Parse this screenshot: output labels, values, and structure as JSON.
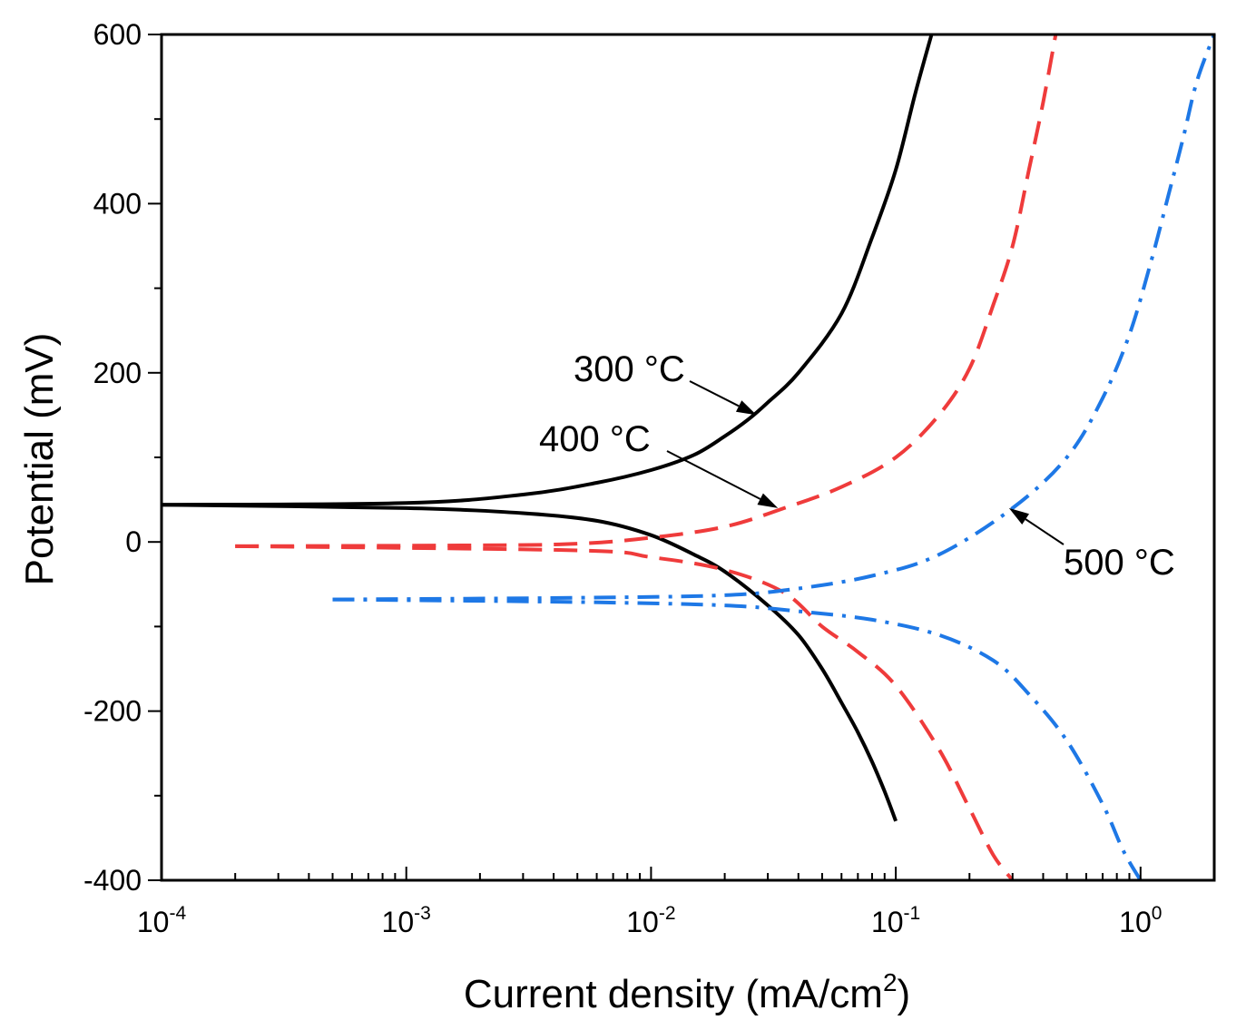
{
  "chart_data": {
    "type": "line",
    "title": "",
    "xlabel": "Current density (mA/cm",
    "xlabel_sup": "2",
    "xlabel_close": ")",
    "ylabel": "Potential (mV)",
    "xscale": "log",
    "xlim": [
      0.0001,
      2
    ],
    "ylim": [
      -400,
      600
    ],
    "x_ticks": [
      {
        "value": 0.0001,
        "base": "10",
        "exp": "-4"
      },
      {
        "value": 0.001,
        "base": "10",
        "exp": "-3"
      },
      {
        "value": 0.01,
        "base": "10",
        "exp": "-2"
      },
      {
        "value": 0.1,
        "base": "10",
        "exp": "-1"
      },
      {
        "value": 1,
        "base": "10",
        "exp": "0"
      }
    ],
    "y_ticks": [
      {
        "value": -400,
        "label": "-400"
      },
      {
        "value": -200,
        "label": "-200"
      },
      {
        "value": 0,
        "label": "0"
      },
      {
        "value": 200,
        "label": "200"
      },
      {
        "value": 400,
        "label": "400"
      },
      {
        "value": 600,
        "label": "600"
      }
    ],
    "legend": "none",
    "series": [
      {
        "name": "300 °C",
        "color": "#000000",
        "dash": "solid",
        "anodic": [
          [
            0.0001,
            44
          ],
          [
            0.001,
            46
          ],
          [
            0.003,
            56
          ],
          [
            0.006,
            70
          ],
          [
            0.01,
            85
          ],
          [
            0.015,
            103
          ],
          [
            0.02,
            125
          ],
          [
            0.025,
            145
          ],
          [
            0.03,
            165
          ],
          [
            0.04,
            200
          ],
          [
            0.06,
            270
          ],
          [
            0.08,
            360
          ],
          [
            0.1,
            440
          ],
          [
            0.12,
            530
          ],
          [
            0.14,
            600
          ]
        ],
        "cathodic": [
          [
            0.0001,
            44
          ],
          [
            0.001,
            40
          ],
          [
            0.003,
            34
          ],
          [
            0.006,
            25
          ],
          [
            0.01,
            8
          ],
          [
            0.015,
            -15
          ],
          [
            0.02,
            -35
          ],
          [
            0.03,
            -75
          ],
          [
            0.04,
            -110
          ],
          [
            0.05,
            -150
          ],
          [
            0.06,
            -190
          ],
          [
            0.07,
            -225
          ],
          [
            0.08,
            -260
          ],
          [
            0.09,
            -295
          ],
          [
            0.1,
            -330
          ]
        ]
      },
      {
        "name": "400 °C",
        "color": "#ef3b3b",
        "dash": "dashed",
        "anodic": [
          [
            0.0002,
            -5
          ],
          [
            0.002,
            -4
          ],
          [
            0.005,
            -2
          ],
          [
            0.01,
            5
          ],
          [
            0.02,
            18
          ],
          [
            0.035,
            40
          ],
          [
            0.06,
            65
          ],
          [
            0.1,
            100
          ],
          [
            0.15,
            150
          ],
          [
            0.2,
            205
          ],
          [
            0.25,
            280
          ],
          [
            0.3,
            350
          ],
          [
            0.35,
            440
          ],
          [
            0.4,
            520
          ],
          [
            0.45,
            600
          ]
        ],
        "cathodic": [
          [
            0.0002,
            -5
          ],
          [
            0.005,
            -10
          ],
          [
            0.01,
            -18
          ],
          [
            0.02,
            -33
          ],
          [
            0.035,
            -60
          ],
          [
            0.05,
            -100
          ],
          [
            0.07,
            -130
          ],
          [
            0.1,
            -170
          ],
          [
            0.15,
            -245
          ],
          [
            0.2,
            -315
          ],
          [
            0.25,
            -370
          ],
          [
            0.3,
            -400
          ]
        ]
      },
      {
        "name": "500 °C",
        "color": "#1e78e6",
        "dash": "dashdot",
        "anodic": [
          [
            0.0005,
            -68
          ],
          [
            0.005,
            -66
          ],
          [
            0.02,
            -63
          ],
          [
            0.04,
            -55
          ],
          [
            0.08,
            -40
          ],
          [
            0.15,
            -15
          ],
          [
            0.3,
            40
          ],
          [
            0.5,
            100
          ],
          [
            0.7,
            170
          ],
          [
            0.9,
            245
          ],
          [
            1.1,
            330
          ],
          [
            1.3,
            410
          ],
          [
            1.5,
            480
          ],
          [
            1.7,
            545
          ],
          [
            2.0,
            600
          ]
        ],
        "cathodic": [
          [
            0.0005,
            -68
          ],
          [
            0.005,
            -71
          ],
          [
            0.02,
            -75
          ],
          [
            0.04,
            -82
          ],
          [
            0.08,
            -92
          ],
          [
            0.15,
            -110
          ],
          [
            0.25,
            -140
          ],
          [
            0.35,
            -180
          ],
          [
            0.5,
            -235
          ],
          [
            0.7,
            -310
          ],
          [
            0.85,
            -365
          ],
          [
            1.0,
            -400
          ]
        ]
      }
    ],
    "annotations": [
      {
        "text": "300 °C",
        "tip": [
          0.027,
          150
        ]
      },
      {
        "text": "400 °C",
        "tip": [
          0.033,
          40
        ]
      },
      {
        "text": "500 °C",
        "tip": [
          0.29,
          40
        ]
      }
    ]
  }
}
